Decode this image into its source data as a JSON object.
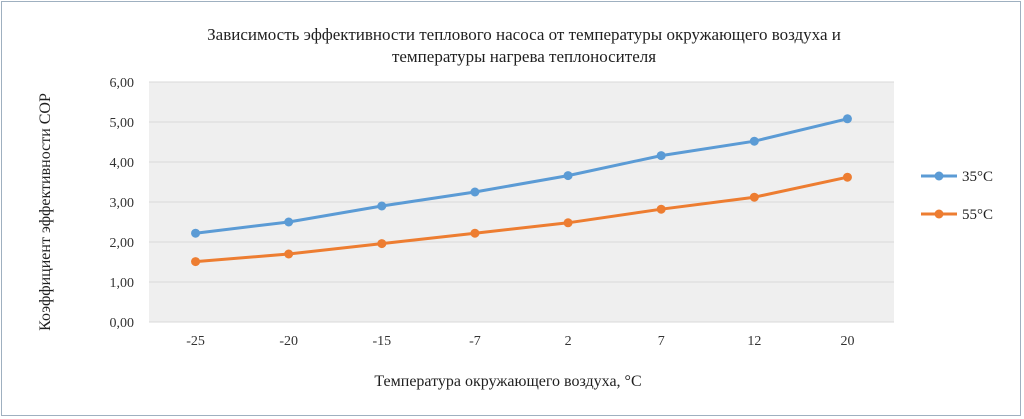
{
  "chart_data": {
    "type": "line",
    "title": [
      "Зависимость эффективности теплового насоса от температуры окружающего воздуха и",
      "температуры нагрева теплоносителя"
    ],
    "xlabel": "Температура окружающего воздуха, °С",
    "ylabel": "Коэффициент эффективности COP",
    "categories": [
      "-25",
      "-20",
      "-15",
      "-7",
      "2",
      "7",
      "12",
      "20"
    ],
    "y_ticks": [
      "0,00",
      "1,00",
      "2,00",
      "3,00",
      "4,00",
      "5,00",
      "6,00"
    ],
    "ylim": [
      0,
      6
    ],
    "grid": true,
    "legend_position": "right",
    "series": [
      {
        "name": "35°C",
        "color": "#5b9bd5",
        "values": [
          2.22,
          2.5,
          2.9,
          3.25,
          3.66,
          4.16,
          4.52,
          5.08
        ]
      },
      {
        "name": "55°C",
        "color": "#ed7d31",
        "values": [
          1.51,
          1.7,
          1.96,
          2.22,
          2.48,
          2.82,
          3.12,
          3.62
        ]
      }
    ]
  }
}
